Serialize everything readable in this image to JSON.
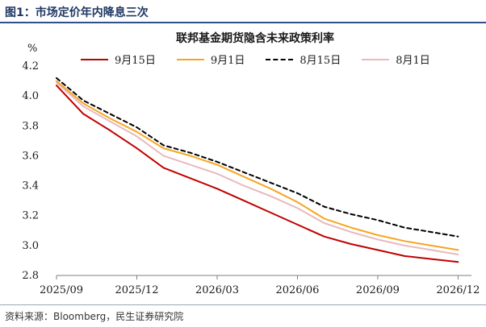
{
  "figure": {
    "label": "图1：市场定价年内降息三次",
    "source": "资料来源：Bloomberg，民生证券研究院"
  },
  "chart_data": {
    "type": "line",
    "title": "联邦基金期货隐含未来政策利率",
    "ylabel": "%",
    "xlabel": "",
    "ylim": [
      2.8,
      4.2
    ],
    "yticks": [
      "2.8",
      "3.0",
      "3.2",
      "3.4",
      "3.6",
      "3.8",
      "4.0",
      "4.2"
    ],
    "xticks": [
      "2025/09",
      "2025/12",
      "2026/03",
      "2026/06",
      "2026/09",
      "2026/12"
    ],
    "xlim": [
      0,
      15.5
    ],
    "grid": false,
    "legend_position": "top",
    "series": [
      {
        "name": "9月15日",
        "color": "#c00000",
        "dash": "solid",
        "x": [
          0,
          1,
          2,
          3,
          4,
          5,
          6,
          7,
          8,
          9,
          10,
          11,
          12,
          13,
          14,
          15
        ],
        "values": [
          4.07,
          3.88,
          3.77,
          3.65,
          3.52,
          3.45,
          3.38,
          3.3,
          3.22,
          3.14,
          3.06,
          3.01,
          2.97,
          2.93,
          2.91,
          2.89
        ]
      },
      {
        "name": "9月1日",
        "color": "#f5a623",
        "dash": "solid",
        "x": [
          0,
          1,
          2,
          3,
          4,
          5,
          6,
          7,
          8,
          9,
          10,
          11,
          12,
          13,
          14,
          15
        ],
        "values": [
          4.1,
          3.95,
          3.85,
          3.76,
          3.65,
          3.6,
          3.54,
          3.46,
          3.38,
          3.29,
          3.18,
          3.12,
          3.07,
          3.03,
          3.0,
          2.97
        ]
      },
      {
        "name": "8月15日",
        "color": "#000000",
        "dash": "dashed",
        "x": [
          0,
          1,
          2,
          3,
          4,
          5,
          6,
          7,
          8,
          9,
          10,
          11,
          12,
          13,
          14,
          15
        ],
        "values": [
          4.12,
          3.97,
          3.88,
          3.79,
          3.67,
          3.62,
          3.56,
          3.49,
          3.42,
          3.35,
          3.26,
          3.21,
          3.17,
          3.12,
          3.09,
          3.06
        ]
      },
      {
        "name": "8月1日",
        "color": "#e8b9bd",
        "dash": "solid",
        "x": [
          0,
          1,
          2,
          3,
          4,
          5,
          6,
          7,
          8,
          9,
          10,
          11,
          12,
          13,
          14,
          15
        ],
        "values": [
          4.09,
          3.93,
          3.83,
          3.73,
          3.6,
          3.54,
          3.48,
          3.4,
          3.33,
          3.25,
          3.15,
          3.09,
          3.04,
          3.0,
          2.97,
          2.94
        ]
      }
    ]
  }
}
